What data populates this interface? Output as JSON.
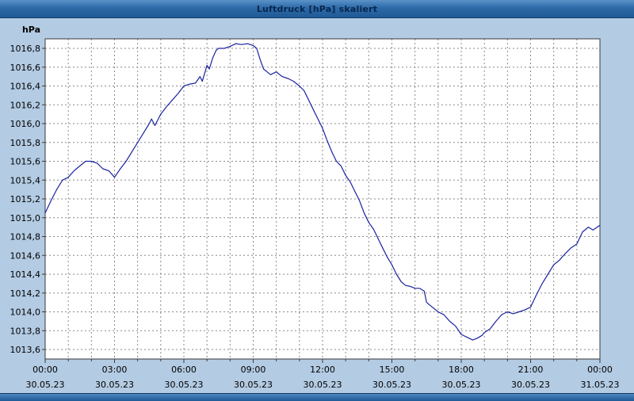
{
  "window": {
    "title": "Luftdruck [hPa] skaliert"
  },
  "colors": {
    "background": "#b3cbe3",
    "plot_background": "#ffffff",
    "grid": "#8a8a8a",
    "axis_border": "#3a3a3a",
    "line": "#1a23a0",
    "label_text": "#000000"
  },
  "chart_data": {
    "type": "line",
    "title": "Luftdruck [hPa] skaliert",
    "unit_label": "hPa",
    "grid": "dashed",
    "legend": "none",
    "y_range": [
      1013.6,
      1016.8
    ],
    "y_step": 0.2,
    "y_ticks": [
      "1016,8",
      "1016,6",
      "1016,4",
      "1016,2",
      "1016,0",
      "1015,8",
      "1015,6",
      "1015,4",
      "1015,2",
      "1015,0",
      "1014,8",
      "1014,6",
      "1014,4",
      "1014,2",
      "1014,0",
      "1013,8",
      "1013,6"
    ],
    "x_range_hours": [
      0,
      24
    ],
    "x_ticks": [
      {
        "hour": 0,
        "time": "00:00",
        "date": "30.05.23"
      },
      {
        "hour": 3,
        "time": "03:00",
        "date": "30.05.23"
      },
      {
        "hour": 6,
        "time": "06:00",
        "date": "30.05.23"
      },
      {
        "hour": 9,
        "time": "09:00",
        "date": "30.05.23"
      },
      {
        "hour": 12,
        "time": "12:00",
        "date": "30.05.23"
      },
      {
        "hour": 15,
        "time": "15:00",
        "date": "30.05.23"
      },
      {
        "hour": 18,
        "time": "18:00",
        "date": "30.05.23"
      },
      {
        "hour": 21,
        "time": "21:00",
        "date": "30.05.23"
      },
      {
        "hour": 24,
        "time": "00:00",
        "date": "31.05.23"
      }
    ],
    "points": [
      [
        0,
        1015.05
      ],
      [
        0.25,
        1015.18
      ],
      [
        0.5,
        1015.3
      ],
      [
        0.75,
        1015.4
      ],
      [
        1,
        1015.43
      ],
      [
        1.25,
        1015.5
      ],
      [
        1.5,
        1015.55
      ],
      [
        1.75,
        1015.6
      ],
      [
        2,
        1015.6
      ],
      [
        2.25,
        1015.58
      ],
      [
        2.5,
        1015.52
      ],
      [
        2.75,
        1015.5
      ],
      [
        3,
        1015.43
      ],
      [
        3.25,
        1015.52
      ],
      [
        3.5,
        1015.6
      ],
      [
        3.75,
        1015.7
      ],
      [
        4,
        1015.8
      ],
      [
        4.25,
        1015.9
      ],
      [
        4.5,
        1016.0
      ],
      [
        4.6,
        1016.05
      ],
      [
        4.75,
        1015.98
      ],
      [
        5,
        1016.1
      ],
      [
        5.25,
        1016.18
      ],
      [
        5.5,
        1016.25
      ],
      [
        5.75,
        1016.32
      ],
      [
        6,
        1016.4
      ],
      [
        6.25,
        1016.42
      ],
      [
        6.5,
        1016.43
      ],
      [
        6.7,
        1016.5
      ],
      [
        6.8,
        1016.45
      ],
      [
        7,
        1016.62
      ],
      [
        7.1,
        1016.58
      ],
      [
        7.25,
        1016.7
      ],
      [
        7.4,
        1016.78
      ],
      [
        7.5,
        1016.8
      ],
      [
        7.75,
        1016.8
      ],
      [
        8,
        1016.82
      ],
      [
        8.25,
        1016.85
      ],
      [
        8.5,
        1016.84
      ],
      [
        8.75,
        1016.85
      ],
      [
        9,
        1016.83
      ],
      [
        9.15,
        1016.8
      ],
      [
        9.3,
        1016.68
      ],
      [
        9.45,
        1016.58
      ],
      [
        9.6,
        1016.55
      ],
      [
        9.75,
        1016.52
      ],
      [
        10,
        1016.55
      ],
      [
        10.25,
        1016.5
      ],
      [
        10.5,
        1016.48
      ],
      [
        10.75,
        1016.45
      ],
      [
        11,
        1016.4
      ],
      [
        11.2,
        1016.35
      ],
      [
        11.4,
        1016.25
      ],
      [
        11.6,
        1016.15
      ],
      [
        11.8,
        1016.05
      ],
      [
        12,
        1015.95
      ],
      [
        12.2,
        1015.82
      ],
      [
        12.4,
        1015.7
      ],
      [
        12.6,
        1015.6
      ],
      [
        12.8,
        1015.55
      ],
      [
        13,
        1015.45
      ],
      [
        13.2,
        1015.38
      ],
      [
        13.4,
        1015.28
      ],
      [
        13.6,
        1015.18
      ],
      [
        13.8,
        1015.05
      ],
      [
        14,
        1014.95
      ],
      [
        14.2,
        1014.88
      ],
      [
        14.4,
        1014.78
      ],
      [
        14.6,
        1014.68
      ],
      [
        14.8,
        1014.58
      ],
      [
        15,
        1014.5
      ],
      [
        15.2,
        1014.4
      ],
      [
        15.4,
        1014.32
      ],
      [
        15.6,
        1014.28
      ],
      [
        15.8,
        1014.27
      ],
      [
        16,
        1014.25
      ],
      [
        16.2,
        1014.25
      ],
      [
        16.4,
        1014.22
      ],
      [
        16.5,
        1014.1
      ],
      [
        16.75,
        1014.05
      ],
      [
        17,
        1014.0
      ],
      [
        17.25,
        1013.97
      ],
      [
        17.5,
        1013.9
      ],
      [
        17.75,
        1013.85
      ],
      [
        18,
        1013.76
      ],
      [
        18.25,
        1013.73
      ],
      [
        18.5,
        1013.7
      ],
      [
        18.7,
        1013.72
      ],
      [
        18.9,
        1013.75
      ],
      [
        19,
        1013.78
      ],
      [
        19.25,
        1013.82
      ],
      [
        19.5,
        1013.9
      ],
      [
        19.75,
        1013.97
      ],
      [
        20,
        1014.0
      ],
      [
        20.25,
        1013.98
      ],
      [
        20.5,
        1014.0
      ],
      [
        20.75,
        1014.02
      ],
      [
        21,
        1014.05
      ],
      [
        21.25,
        1014.18
      ],
      [
        21.5,
        1014.3
      ],
      [
        21.75,
        1014.4
      ],
      [
        22,
        1014.5
      ],
      [
        22.25,
        1014.55
      ],
      [
        22.5,
        1014.62
      ],
      [
        22.75,
        1014.68
      ],
      [
        23,
        1014.72
      ],
      [
        23.25,
        1014.85
      ],
      [
        23.5,
        1014.9
      ],
      [
        23.7,
        1014.87
      ],
      [
        24,
        1014.92
      ]
    ]
  }
}
